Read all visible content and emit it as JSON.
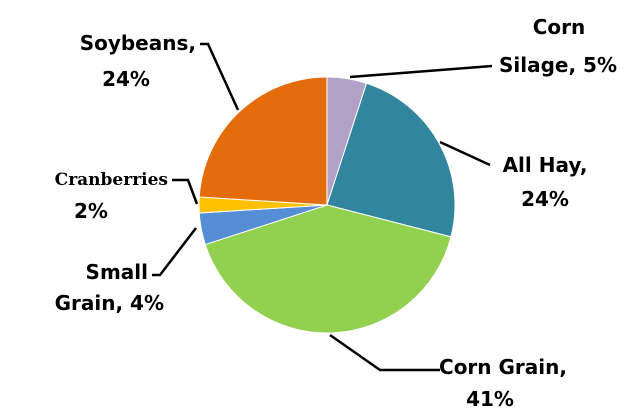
{
  "chart_data": {
    "type": "pie",
    "start_angle_deg": 0,
    "direction": "clockwise",
    "slices": [
      {
        "label": "Corn Silage",
        "value": 5,
        "pct_text": "5%",
        "color": "#b3a2c7"
      },
      {
        "label": "All Hay",
        "value": 24,
        "pct_text": "24%",
        "color": "#31859c"
      },
      {
        "label": "Corn Grain",
        "value": 41,
        "pct_text": "41%",
        "color": "#92d050"
      },
      {
        "label": "Small Grain",
        "value": 4,
        "pct_text": "4%",
        "color": "#558ed5"
      },
      {
        "label": "Cranberries",
        "value": 2,
        "pct_text": "2%",
        "color": "#ffc000"
      },
      {
        "label": "Soybeans",
        "value": 24,
        "pct_text": "24%",
        "color": "#e46c0a"
      }
    ],
    "labels": {
      "corn_silage_line1": "Corn",
      "corn_silage_line2": "Silage, 5%",
      "all_hay_line1": "All Hay,",
      "all_hay_line2": "24%",
      "corn_grain_line1": "Corn Grain,",
      "corn_grain_line2": "41%",
      "small_grain_line1": "Small",
      "small_grain_line2": "Grain, 4%",
      "cranberries_line1": "Cranberries",
      "cranberries_line2": "2%",
      "soybeans_line1": "Soybeans,",
      "soybeans_line2": "24%"
    }
  }
}
